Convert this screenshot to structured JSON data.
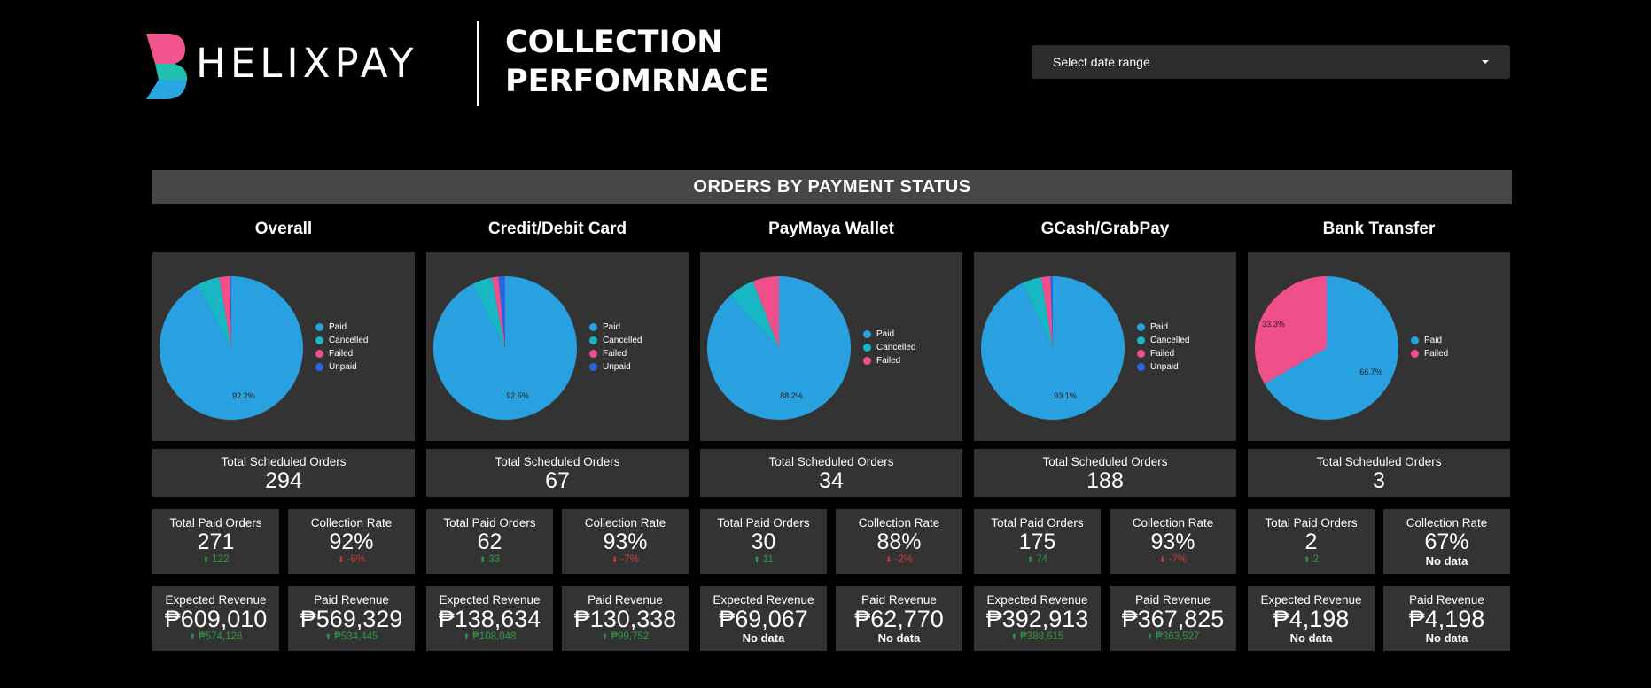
{
  "header": {
    "logo_text": "HELIXPAY",
    "title_line1": "COLLECTION",
    "title_line2": "PERFOMRNACE",
    "date_range_placeholder": "Select date range"
  },
  "section": {
    "title": "ORDERS BY PAYMENT STATUS"
  },
  "colors": {
    "Paid": "#29a0df",
    "Cancelled": "#17b7c4",
    "Failed": "#f0508a",
    "Unpaid": "#2a66e4",
    "panel": "#333333",
    "section_bar": "#464646",
    "positive": "#2e9b44",
    "negative": "#d23b3b"
  },
  "labels": {
    "total_scheduled": "Total Scheduled Orders",
    "total_paid": "Total Paid Orders",
    "collection_rate": "Collection Rate",
    "expected_revenue": "Expected Revenue",
    "paid_revenue": "Paid Revenue"
  },
  "columns": [
    {
      "title": "Overall",
      "pie": {
        "slices": [
          {
            "label": "Paid",
            "value": 92.2
          },
          {
            "label": "Cancelled",
            "value": 5.1
          },
          {
            "label": "Failed",
            "value": 2.4
          },
          {
            "label": "Unpaid",
            "value": 0.3
          }
        ],
        "shown_label": "92.2%",
        "legend": [
          "Paid",
          "Cancelled",
          "Failed",
          "Unpaid"
        ]
      },
      "total_scheduled": "294",
      "total_paid": "271",
      "total_paid_delta": "122",
      "total_paid_dir": "up",
      "collection_rate": "92%",
      "collection_rate_delta": "-6%",
      "collection_rate_dir": "down",
      "expected_revenue": "₱609,010",
      "expected_revenue_delta": "₱574,126",
      "expected_revenue_dir": "up",
      "paid_revenue": "₱569,329",
      "paid_revenue_delta": "₱534,445",
      "paid_revenue_dir": "up"
    },
    {
      "title": "Credit/Debit Card",
      "pie": {
        "slices": [
          {
            "label": "Paid",
            "value": 92.5
          },
          {
            "label": "Cancelled",
            "value": 4.5
          },
          {
            "label": "Failed",
            "value": 1.5
          },
          {
            "label": "Unpaid",
            "value": 1.5
          }
        ],
        "shown_label": "92.5%",
        "legend": [
          "Paid",
          "Cancelled",
          "Failed",
          "Unpaid"
        ]
      },
      "total_scheduled": "67",
      "total_paid": "62",
      "total_paid_delta": "33",
      "total_paid_dir": "up",
      "collection_rate": "93%",
      "collection_rate_delta": "-7%",
      "collection_rate_dir": "down",
      "expected_revenue": "₱138,634",
      "expected_revenue_delta": "₱108,048",
      "expected_revenue_dir": "up",
      "paid_revenue": "₱130,338",
      "paid_revenue_delta": "₱99,752",
      "paid_revenue_dir": "up"
    },
    {
      "title": "PayMaya Wallet",
      "pie": {
        "slices": [
          {
            "label": "Paid",
            "value": 88.2
          },
          {
            "label": "Cancelled",
            "value": 5.9
          },
          {
            "label": "Failed",
            "value": 5.9
          }
        ],
        "shown_label": "88.2%",
        "legend": [
          "Paid",
          "Cancelled",
          "Failed"
        ]
      },
      "total_scheduled": "34",
      "total_paid": "30",
      "total_paid_delta": "11",
      "total_paid_dir": "up",
      "collection_rate": "88%",
      "collection_rate_delta": "-2%",
      "collection_rate_dir": "down",
      "expected_revenue": "₱69,067",
      "expected_revenue_nodata": "No data",
      "paid_revenue": "₱62,770",
      "paid_revenue_nodata": "No data"
    },
    {
      "title": "GCash/GrabPay",
      "pie": {
        "slices": [
          {
            "label": "Paid",
            "value": 93.1
          },
          {
            "label": "Cancelled",
            "value": 4.3
          },
          {
            "label": "Failed",
            "value": 2.1
          },
          {
            "label": "Unpaid",
            "value": 0.5
          }
        ],
        "shown_label": "93.1%",
        "legend": [
          "Paid",
          "Cancelled",
          "Failed",
          "Unpaid"
        ]
      },
      "total_scheduled": "188",
      "total_paid": "175",
      "total_paid_delta": "74",
      "total_paid_dir": "up",
      "collection_rate": "93%",
      "collection_rate_delta": "-7%",
      "collection_rate_dir": "down",
      "expected_revenue": "₱392,913",
      "expected_revenue_delta": "₱388,615",
      "expected_revenue_dir": "up",
      "paid_revenue": "₱367,825",
      "paid_revenue_delta": "₱363,527",
      "paid_revenue_dir": "up"
    },
    {
      "title": "Bank Transfer",
      "pie": {
        "slices": [
          {
            "label": "Paid",
            "value": 66.7
          },
          {
            "label": "Failed",
            "value": 33.3
          }
        ],
        "shown_label": "66.7%",
        "shown_label_2": "33.3%",
        "legend": [
          "Paid",
          "Failed"
        ]
      },
      "total_scheduled": "3",
      "total_paid": "2",
      "total_paid_delta": "2",
      "total_paid_dir": "up",
      "collection_rate": "67%",
      "collection_rate_nodata": "No data",
      "expected_revenue": "₱4,198",
      "expected_revenue_nodata": "No data",
      "paid_revenue": "₱4,198",
      "paid_revenue_nodata": "No data"
    }
  ]
}
